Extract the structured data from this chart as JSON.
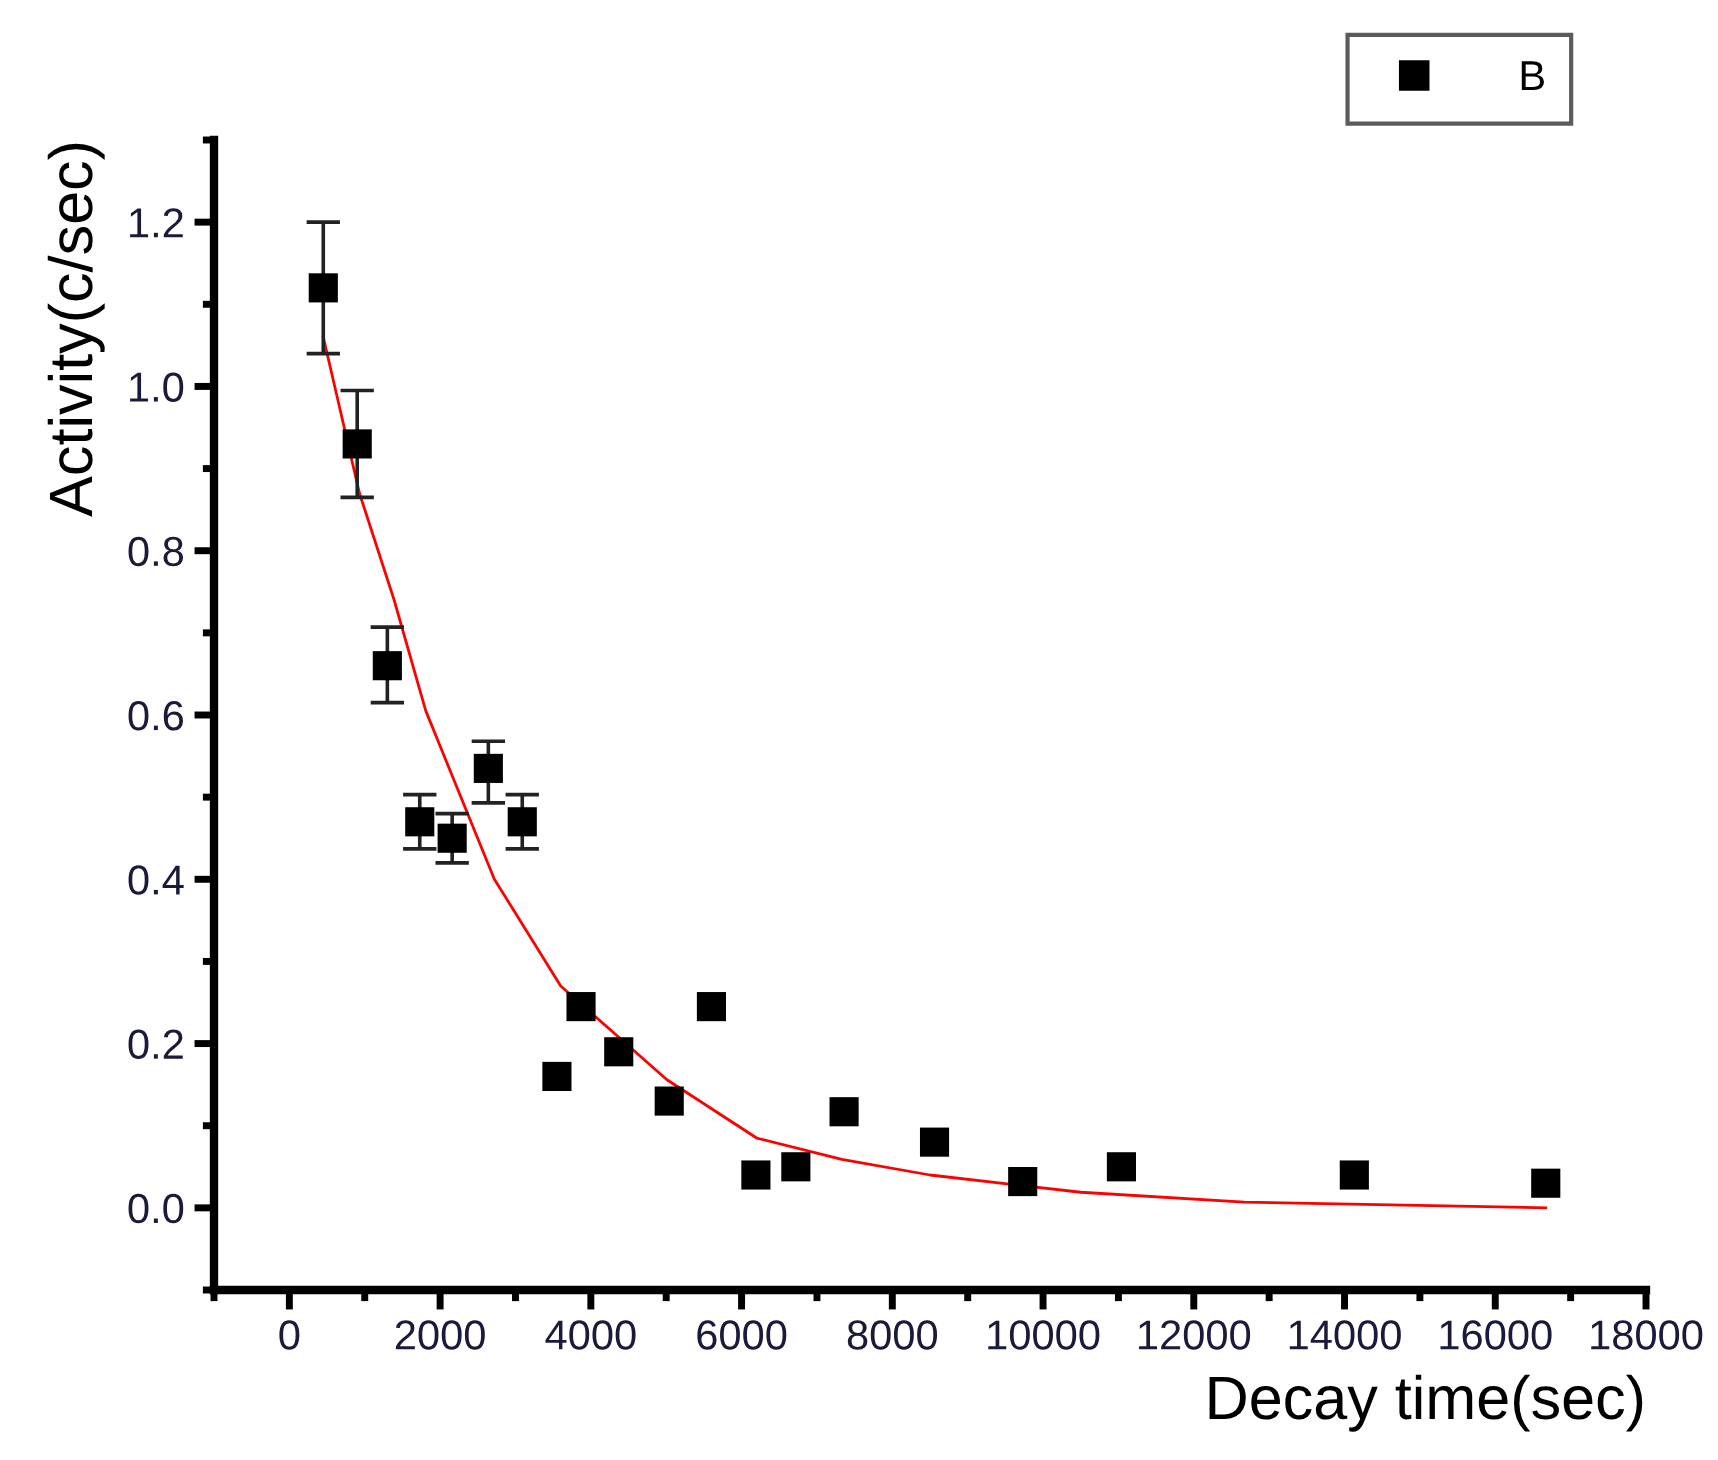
{
  "chart_data": {
    "type": "scatter",
    "xlabel": "Decay time(sec)",
    "ylabel": "Activity(c/sec)",
    "xlim": [
      -1000,
      18000
    ],
    "xticks": [
      0,
      2000,
      4000,
      6000,
      8000,
      10000,
      12000,
      14000,
      16000,
      18000
    ],
    "ylim": [
      -0.1,
      1.3
    ],
    "yticks": [
      {
        "value": 0,
        "label": "0.0"
      },
      0.2,
      0.4,
      0.6,
      0.8,
      {
        "value": 1,
        "label": "1.0"
      },
      1.2
    ],
    "grid": false,
    "legend": "top right",
    "series": [
      {
        "name": "B",
        "marker": "square",
        "color": "#000000",
        "x": [
          450,
          900,
          1300,
          1730,
          2160,
          2640,
          3090,
          3550,
          3870,
          4370,
          5040,
          5600,
          6190,
          6720,
          7360,
          8560,
          9730,
          11040,
          14130,
          16670
        ],
        "values": [
          1.12,
          0.93,
          0.66,
          0.47,
          0.45,
          0.535,
          0.47,
          0.16,
          0.245,
          0.19,
          0.13,
          0.245,
          0.04,
          0.05,
          0.117,
          0.08,
          0.032,
          0.05,
          0.04,
          0.03
        ],
        "errors": [
          [
            1.04,
            1.2
          ],
          [
            0.865,
            0.995
          ],
          [
            0.615,
            0.707
          ],
          [
            0.437,
            0.503
          ],
          [
            0.42,
            0.48
          ],
          [
            0.493,
            0.568
          ],
          [
            0.437,
            0.503
          ],
          null,
          null,
          null,
          null,
          null,
          null,
          null,
          null,
          null,
          null,
          null,
          null,
          null
        ]
      },
      {
        "type": "line",
        "color": "#ff0000",
        "line_style": "solid",
        "x": [
          450,
          930,
          1390,
          1810,
          2720,
          3600,
          5010,
          6200,
          7330,
          8500,
          10500,
          12670,
          16670
        ],
        "values": [
          1.06,
          0.87,
          0.74,
          0.605,
          0.4,
          0.27,
          0.156,
          0.085,
          0.059,
          0.04,
          0.019,
          0.007,
          0.0
        ]
      }
    ]
  }
}
